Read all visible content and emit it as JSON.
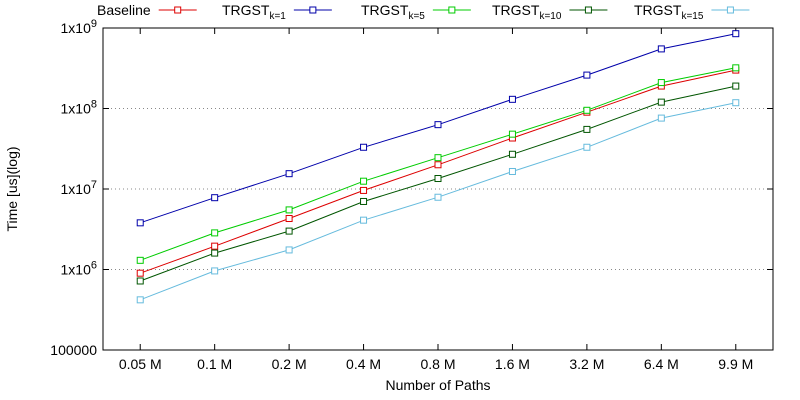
{
  "chart_data": {
    "type": "line",
    "title": "",
    "xlabel": "Number of Paths",
    "ylabel": "Time [us](log)",
    "y_scale": "log",
    "ylim": [
      100000,
      1000000000
    ],
    "y_ticks": [
      {
        "value": 100000,
        "base": "100000",
        "exp": ""
      },
      {
        "value": 1000000,
        "base": "1x10",
        "exp": "6"
      },
      {
        "value": 10000000,
        "base": "1x10",
        "exp": "7"
      },
      {
        "value": 100000000,
        "base": "1x10",
        "exp": "8"
      },
      {
        "value": 1000000000,
        "base": "1x10",
        "exp": "9"
      }
    ],
    "grid": "horizontal dotted",
    "legend_position": "top",
    "categories": [
      "0.05 M",
      "0.1 M",
      "0.2 M",
      "0.4 M",
      "0.8 M",
      "1.6 M",
      "3.2 M",
      "6.4 M",
      "9.9 M"
    ],
    "series": [
      {
        "name": "Baseline",
        "name_sub": "",
        "color": "#dd0000",
        "values": [
          900000,
          1950000,
          4300000,
          9600000,
          20000000,
          43000000,
          90000000,
          190000000,
          300000000
        ]
      },
      {
        "name": "TRGST",
        "name_sub": "k=1",
        "color": "#0000aa",
        "values": [
          3800000,
          7800000,
          15500000,
          33000000,
          63000000,
          130000000,
          260000000,
          550000000,
          850000000
        ]
      },
      {
        "name": "TRGST",
        "name_sub": "k=5",
        "color": "#00cc00",
        "values": [
          1300000,
          2850000,
          5500000,
          12500000,
          24500000,
          48000000,
          95000000,
          210000000,
          320000000
        ]
      },
      {
        "name": "TRGST",
        "name_sub": "k=10",
        "color": "#005500",
        "values": [
          720000,
          1600000,
          3000000,
          7000000,
          13500000,
          27000000,
          55000000,
          120000000,
          190000000
        ]
      },
      {
        "name": "TRGST",
        "name_sub": "k=15",
        "color": "#66bbdd",
        "values": [
          420000,
          960000,
          1750000,
          4100000,
          7900000,
          16500000,
          33000000,
          76000000,
          118000000
        ]
      }
    ]
  }
}
